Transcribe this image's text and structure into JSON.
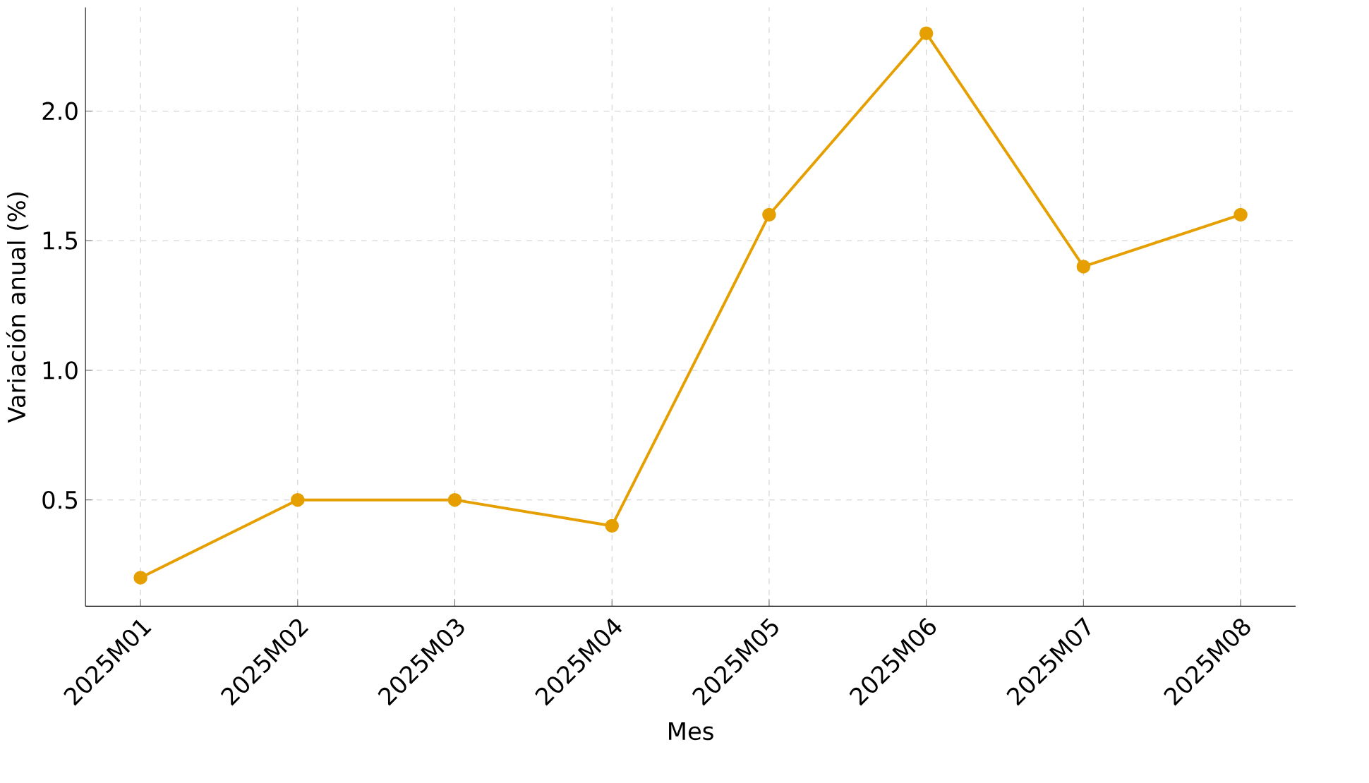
{
  "chart_data": {
    "type": "line",
    "xlabel": "Mes",
    "ylabel": "Variación anual (%)",
    "categories": [
      "2025M01",
      "2025M02",
      "2025M03",
      "2025M04",
      "2025M05",
      "2025M06",
      "2025M07",
      "2025M08"
    ],
    "series": [
      {
        "color": "#e69f00",
        "values": [
          0.2,
          0.5,
          0.5,
          0.4,
          1.6,
          2.3,
          1.4,
          1.6
        ]
      }
    ],
    "ylim": [
      0.09,
      2.4
    ],
    "yticks": [
      0.5,
      {
        "value": 1,
        "label": "1.0"
      },
      1.5,
      {
        "value": 2,
        "label": "2.0"
      }
    ],
    "grid": true,
    "marker": "circle",
    "line_style": "solid"
  }
}
